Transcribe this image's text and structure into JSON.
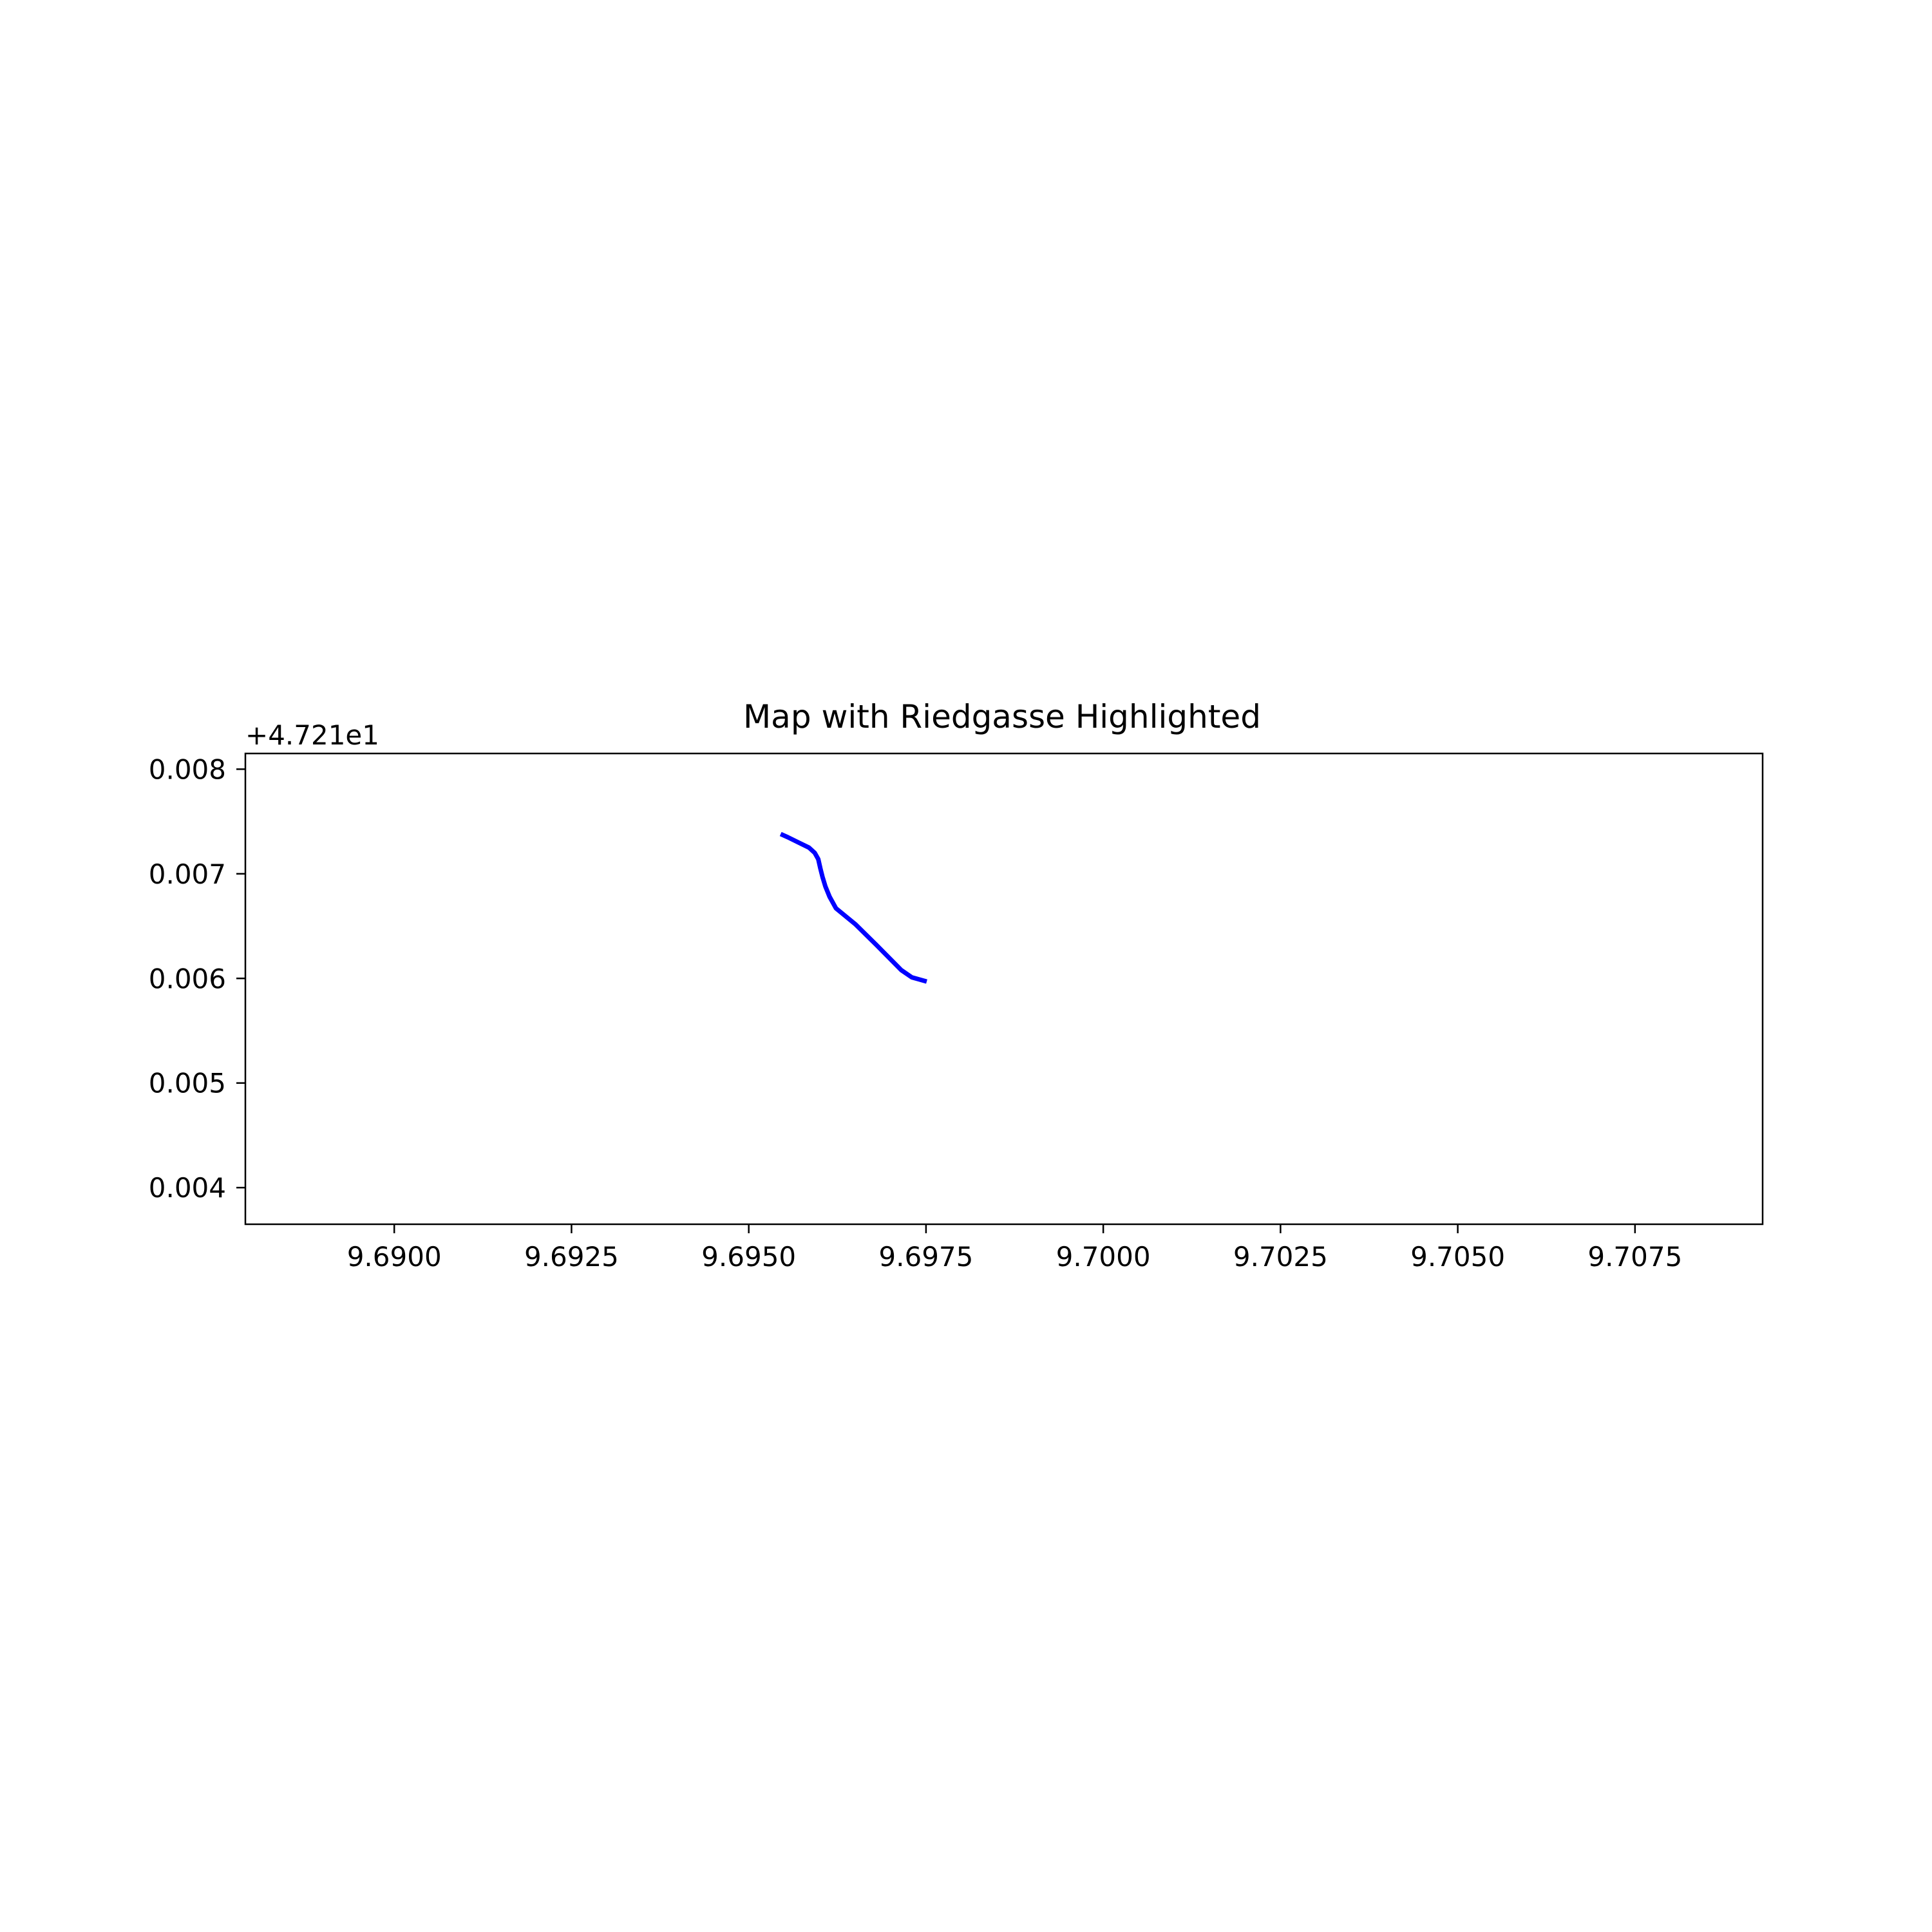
{
  "chart_data": {
    "type": "line",
    "title": "Map with Riedgasse Highlighted",
    "xlabel": "",
    "ylabel": "",
    "y_offset_label": "+4.721e1",
    "xlim": [
      9.6879,
      9.7093
    ],
    "ylim": [
      0.00365,
      0.00815
    ],
    "x_ticks": [
      9.69,
      9.6925,
      9.695,
      9.6975,
      9.7,
      9.7025,
      9.705,
      9.7075
    ],
    "x_tick_labels": [
      "9.6900",
      "9.6925",
      "9.6950",
      "9.6975",
      "9.7000",
      "9.7025",
      "9.7050",
      "9.7075"
    ],
    "y_ticks": [
      0.004,
      0.005,
      0.006,
      0.007,
      0.008
    ],
    "y_tick_labels": [
      "0.004",
      "0.005",
      "0.006",
      "0.007",
      "0.008"
    ],
    "grid": false,
    "series": [
      {
        "color": "#0000ff",
        "x": [
          9.69545,
          9.69555,
          9.6957,
          9.69585,
          9.69593,
          9.69598,
          9.69601,
          9.69604,
          9.69608,
          9.69614,
          9.69623,
          9.6965,
          9.6968,
          9.69715,
          9.6973,
          9.69751
        ],
        "y": [
          0.00738,
          0.00735,
          0.0073,
          0.00725,
          0.0072,
          0.00714,
          0.00705,
          0.00697,
          0.00688,
          0.00678,
          0.00667,
          0.00652,
          0.00632,
          0.00608,
          0.00601,
          0.00597
        ]
      }
    ]
  }
}
